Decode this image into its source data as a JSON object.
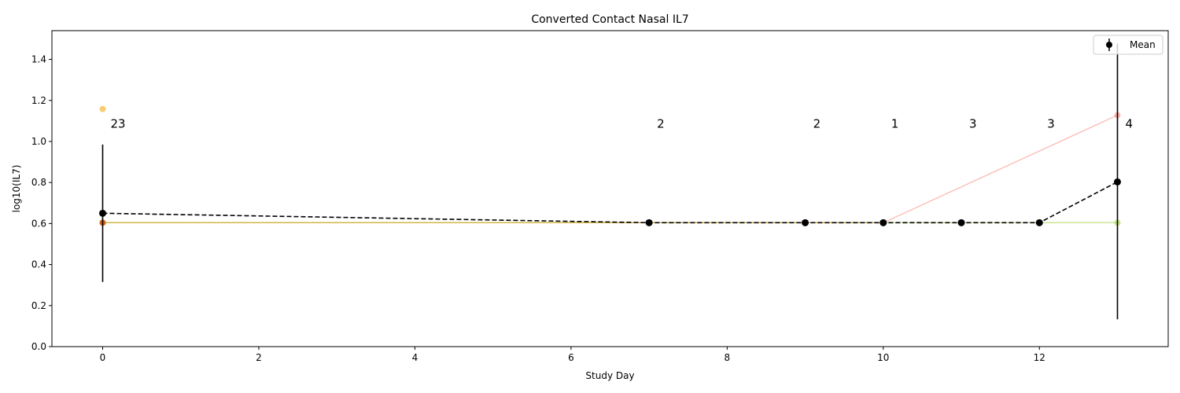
{
  "chart_data": {
    "type": "line",
    "title": "Converted Contact Nasal IL7",
    "xlabel": "Study Day",
    "ylabel": "log10(IL7)",
    "xlim": [
      -0.65,
      13.65
    ],
    "ylim": [
      0,
      1.54
    ],
    "xticks": [
      0,
      2,
      4,
      6,
      8,
      10,
      12
    ],
    "yticks": [
      0.0,
      0.2,
      0.4,
      0.6,
      0.8,
      1.0,
      1.2,
      1.4
    ],
    "grid": false,
    "legend": {
      "position": "top-right",
      "entries": [
        "Mean"
      ]
    },
    "mean_series": {
      "name": "Mean",
      "color": "#000000",
      "x": [
        0,
        7,
        9,
        10,
        11,
        12,
        13
      ],
      "y": [
        0.65,
        0.604,
        0.604,
        0.604,
        0.604,
        0.604,
        0.803
      ],
      "err_low": [
        0.315,
        0.604,
        0.604,
        0.604,
        0.604,
        0.604,
        0.133
      ],
      "err_high": [
        0.985,
        0.604,
        0.604,
        0.604,
        0.604,
        0.604,
        1.477
      ]
    },
    "subject_series": [
      {
        "color": "#fa8072",
        "x": [
          0,
          7,
          9,
          10,
          13
        ],
        "y": [
          0.604,
          0.604,
          0.604,
          0.604,
          1.128
        ]
      },
      {
        "color": "#9acd32",
        "x": [
          0,
          11,
          12,
          13
        ],
        "y": [
          0.604,
          0.604,
          0.604,
          0.604
        ]
      },
      {
        "color": "#daa520",
        "x": [
          0,
          7,
          9,
          10
        ],
        "y": [
          0.604,
          0.604,
          0.604,
          0.604
        ]
      }
    ],
    "subject_points": [
      {
        "color": "#f4a300",
        "x": 0,
        "y": 1.158
      },
      {
        "color": "#cc2200",
        "x": 0,
        "y": 0.604
      }
    ],
    "count_labels": [
      {
        "x": 0,
        "text": "23"
      },
      {
        "x": 7,
        "text": "2"
      },
      {
        "x": 9,
        "text": "2"
      },
      {
        "x": 10,
        "text": "1"
      },
      {
        "x": 11,
        "text": "3"
      },
      {
        "x": 12,
        "text": "3"
      },
      {
        "x": 13,
        "text": "4"
      }
    ],
    "count_label_y": 1.09
  }
}
